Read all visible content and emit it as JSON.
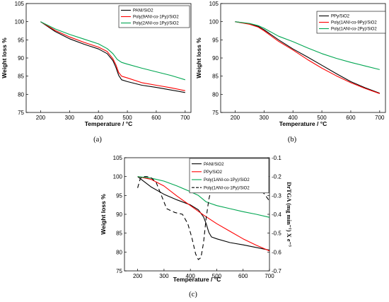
{
  "chart_data": [
    {
      "type": "line",
      "panel_label": "(a)",
      "xlabel": "Temperature / °C",
      "ylabel": "Weight loss %",
      "xlim": [
        150,
        720
      ],
      "ylim": [
        75,
        105
      ],
      "xticks": [
        200,
        300,
        400,
        500,
        600,
        700
      ],
      "yticks": [
        75,
        80,
        85,
        90,
        95,
        100,
        105
      ],
      "legend_position": "top-right",
      "series": [
        {
          "name": "PANI/SiO2",
          "color": "#000000",
          "x": [
            200,
            250,
            300,
            350,
            400,
            430,
            450,
            460,
            470,
            480,
            500,
            550,
            600,
            650,
            700
          ],
          "y": [
            100,
            97.3,
            95.3,
            93.8,
            92.5,
            91.2,
            89.3,
            87.5,
            85.2,
            84.0,
            83.5,
            82.5,
            81.9,
            81.2,
            80.5
          ]
        },
        {
          "name": "Poly(9ANI-co-1Py)/SiO2",
          "color": "#ff0000",
          "x": [
            200,
            250,
            300,
            350,
            400,
            430,
            450,
            460,
            470,
            480,
            500,
            550,
            600,
            650,
            700
          ],
          "y": [
            100,
            97.6,
            95.8,
            94.3,
            93.0,
            91.8,
            89.8,
            88.2,
            86.0,
            85.0,
            84.5,
            83.2,
            82.5,
            81.8,
            81.0
          ]
        },
        {
          "name": "Poly(2ANI-co-1Py)/SiO2",
          "color": "#00a651",
          "x": [
            200,
            250,
            300,
            350,
            400,
            430,
            450,
            465,
            480,
            500,
            550,
            600,
            650,
            700
          ],
          "y": [
            100,
            98.0,
            96.5,
            95.2,
            93.9,
            92.6,
            91.2,
            89.6,
            88.8,
            88.3,
            87.2,
            86.2,
            85.2,
            84.0
          ]
        }
      ]
    },
    {
      "type": "line",
      "panel_label": "(b)",
      "xlabel": "Temperature / °C",
      "ylabel": "Weight loss %",
      "xlim": [
        150,
        720
      ],
      "ylim": [
        75,
        105
      ],
      "xticks": [
        200,
        300,
        400,
        500,
        600,
        700
      ],
      "yticks": [
        75,
        80,
        85,
        90,
        95,
        100,
        105
      ],
      "legend_position": "top-right",
      "series": [
        {
          "name": "PPy/SiO2",
          "color": "#000000",
          "x": [
            200,
            250,
            280,
            300,
            350,
            400,
            450,
            500,
            550,
            600,
            650,
            700
          ],
          "y": [
            100,
            99.4,
            98.7,
            97.8,
            95.0,
            92.5,
            90.3,
            88.0,
            85.7,
            83.5,
            81.8,
            80.3
          ]
        },
        {
          "name": "Poly(1ANI-co-9Py)/SiO2",
          "color": "#ff0000",
          "x": [
            200,
            250,
            280,
            300,
            350,
            400,
            450,
            500,
            550,
            600,
            650,
            700
          ],
          "y": [
            100,
            99.3,
            98.5,
            97.5,
            94.6,
            92.2,
            89.6,
            87.2,
            85.1,
            83.2,
            81.6,
            80.2
          ]
        },
        {
          "name": "Poly(1ANI-co-2Py)/SiO2",
          "color": "#00a651",
          "x": [
            200,
            250,
            280,
            300,
            350,
            400,
            450,
            500,
            550,
            600,
            650,
            700
          ],
          "y": [
            100,
            99.5,
            98.9,
            98.2,
            96.0,
            94.5,
            92.8,
            91.2,
            89.9,
            88.8,
            87.8,
            86.8
          ]
        }
      ]
    },
    {
      "type": "line",
      "panel_label": "(c)",
      "xlabel": "Temperature / °C",
      "ylabel": "Weight loss %",
      "y2label": "DrTGA (mg min⁻¹) X e⁻³",
      "xlim": [
        150,
        700
      ],
      "ylim": [
        75,
        105
      ],
      "y2lim": [
        -0.7,
        -0.1
      ],
      "xticks": [
        200,
        300,
        400,
        500,
        600,
        700
      ],
      "yticks": [
        75,
        80,
        85,
        90,
        95,
        100,
        105
      ],
      "y2ticks": [
        -0.7,
        -0.6,
        -0.5,
        -0.4,
        -0.3,
        -0.2,
        -0.1
      ],
      "y2ticklabels": [
        "-0.7",
        "-0.6",
        "-0.5",
        "-0.4",
        "-0.3",
        "-0.2",
        "-0.1"
      ],
      "legend_position": "top-right",
      "series": [
        {
          "name": "PANI/SiO2",
          "color": "#000000",
          "axis": "left",
          "dash": "",
          "x": [
            200,
            250,
            300,
            350,
            400,
            430,
            450,
            460,
            470,
            480,
            500,
            550,
            600,
            650,
            700
          ],
          "y": [
            100,
            97.3,
            95.3,
            93.8,
            92.5,
            91.2,
            89.3,
            87.5,
            85.2,
            84.0,
            83.5,
            82.5,
            81.9,
            81.2,
            80.5
          ]
        },
        {
          "name": "PPy/SiO2",
          "color": "#ff0000",
          "axis": "left",
          "dash": "",
          "x": [
            200,
            250,
            300,
            350,
            400,
            450,
            500,
            550,
            600,
            650,
            700
          ],
          "y": [
            100,
            99.3,
            97.5,
            94.8,
            92.3,
            89.8,
            87.5,
            85.5,
            83.5,
            81.8,
            80.3
          ]
        },
        {
          "name": "Poly(1ANI-co-1Py)/SiO2",
          "color": "#00a651",
          "axis": "left",
          "dash": "",
          "x": [
            200,
            250,
            300,
            350,
            400,
            430,
            460,
            480,
            500,
            550,
            600,
            650,
            700
          ],
          "y": [
            100,
            99.6,
            98.8,
            97.5,
            96.0,
            95.0,
            93.3,
            92.8,
            92.3,
            91.5,
            90.7,
            90.0,
            89.2
          ]
        },
        {
          "name": "Poly(1ANI-co-1Py)/SiO2",
          "color": "#000000",
          "axis": "right",
          "dash": "6,4",
          "x": [
            200,
            210,
            220,
            235,
            250,
            270,
            290,
            310,
            340,
            370,
            390,
            405,
            420,
            430,
            440,
            450,
            460,
            470,
            480,
            490,
            500,
            550,
            600,
            650,
            680,
            700
          ],
          "y": [
            -0.26,
            -0.21,
            -0.2,
            -0.2,
            -0.205,
            -0.23,
            -0.3,
            -0.37,
            -0.39,
            -0.4,
            -0.45,
            -0.52,
            -0.61,
            -0.64,
            -0.63,
            -0.55,
            -0.42,
            -0.32,
            -0.26,
            -0.25,
            -0.255,
            -0.26,
            -0.25,
            -0.26,
            -0.29,
            -0.33
          ]
        }
      ]
    }
  ]
}
